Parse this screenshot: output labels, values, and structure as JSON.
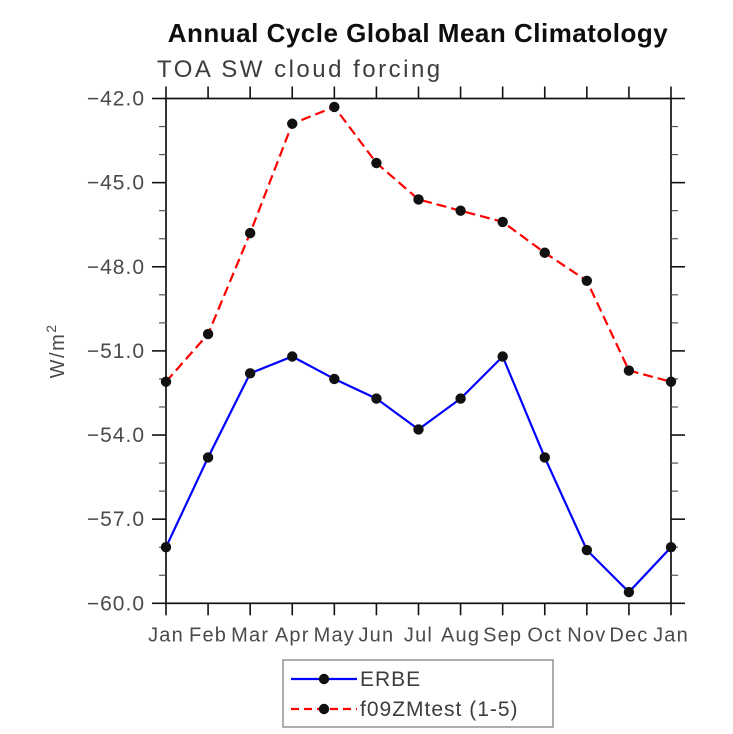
{
  "chart_data": {
    "type": "line",
    "title": "Annual Cycle Global Mean Climatology",
    "subtitle": "TOA SW cloud forcing",
    "ylabel": "W/m²",
    "xlabel": "",
    "categories": [
      "Jan",
      "Feb",
      "Mar",
      "Apr",
      "May",
      "Jun",
      "Jul",
      "Aug",
      "Sep",
      "Oct",
      "Nov",
      "Dec",
      "Jan"
    ],
    "series": [
      {
        "name": "ERBE",
        "color": "#0000ff",
        "line_style": "solid",
        "marker": "filled-black-circle",
        "values": [
          -58.0,
          -54.8,
          -51.8,
          -51.2,
          -52.0,
          -52.7,
          -53.8,
          -52.7,
          -51.2,
          -54.8,
          -58.1,
          -59.6,
          -58.0
        ]
      },
      {
        "name": "f09ZMtest (1-5)",
        "color": "#ff0000",
        "line_style": "dashed",
        "marker": "filled-black-circle",
        "values": [
          -52.1,
          -50.4,
          -46.8,
          -42.9,
          -42.3,
          -44.3,
          -45.6,
          -46.0,
          -46.4,
          -47.5,
          -48.5,
          -51.7,
          -52.1
        ]
      }
    ],
    "ylim": [
      -60,
      -42
    ],
    "yticks": [
      -42,
      -45,
      -48,
      -51,
      -54,
      -57,
      -60
    ],
    "ytick_labels": [
      "−42.0",
      "−45.0",
      "−48.0",
      "−51.0",
      "−54.0",
      "−57.0",
      "−60.0"
    ],
    "minor_tick_step": 1,
    "grid": false,
    "legend_position": "bottom-center",
    "colors": {
      "axis": "#111111",
      "marker": "#111111",
      "tick_text": "#4a4a4a",
      "subtitle_text": "#3d3d3d",
      "legend_border": "#9a9a9a"
    }
  }
}
